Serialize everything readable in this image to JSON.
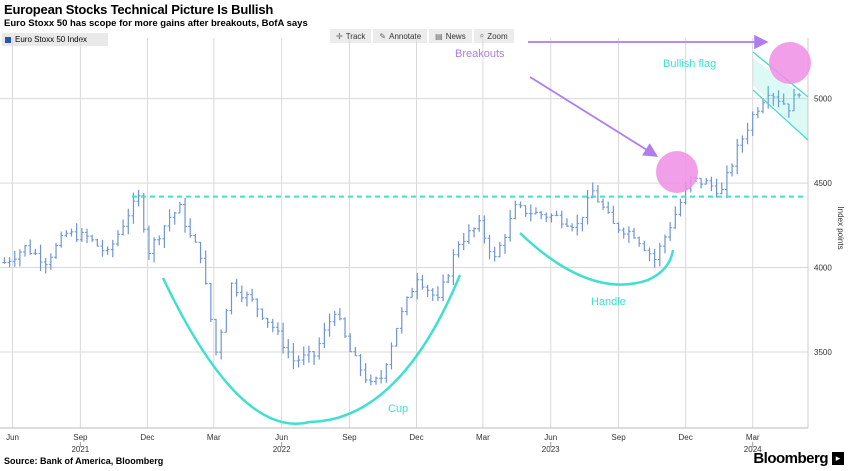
{
  "header": {
    "title": "European Stocks Technical Picture Is Bullish",
    "subtitle": "Euro Stoxx 50 has scope for more gains after breakouts, BofA says"
  },
  "legend": {
    "label": "Euro Stoxx 50 Index",
    "color": "#2457b5"
  },
  "toolbar": {
    "track": "Track",
    "annotate": "Annotate",
    "news": "News",
    "zoom": "Zoom"
  },
  "footer": {
    "source": "Source: Bank of America, Bloomberg",
    "brand": "Bloomberg"
  },
  "colors": {
    "series": "#6d95d6",
    "annotation_teal": "#3fe0cf",
    "annotation_purple": "#b07cf0",
    "highlight_pink": "#f08ee6",
    "grid": "#d9d9d9"
  },
  "chart_data": {
    "type": "bar",
    "ylabel": "Index points",
    "yticks": [
      3500,
      4000,
      4500,
      5000
    ],
    "ylim": [
      3050,
      5300
    ],
    "xlim": [
      "2021-05-15",
      "2024-05-15"
    ],
    "x_month_labels": [
      "Jun",
      "Sep",
      "Dec",
      "Mar",
      "Jun",
      "Sep",
      "Dec",
      "Mar",
      "Jun",
      "Sep",
      "Dec",
      "Mar"
    ],
    "x_year_labels": [
      "2021",
      "2022",
      "2023",
      "2024"
    ],
    "series": [
      {
        "name": "Euro Stoxx 50 Index",
        "points": [
          [
            "2021-05-21",
            4030
          ],
          [
            "2021-06-18",
            4120
          ],
          [
            "2021-07-16",
            4040
          ],
          [
            "2021-08-13",
            4200
          ],
          [
            "2021-09-10",
            4180
          ],
          [
            "2021-10-08",
            4080
          ],
          [
            "2021-11-05",
            4320
          ],
          [
            "2021-11-19",
            4410
          ],
          [
            "2021-12-03",
            4100
          ],
          [
            "2021-12-31",
            4300
          ],
          [
            "2022-01-14",
            4350
          ],
          [
            "2022-01-28",
            4180
          ],
          [
            "2022-02-11",
            4080
          ],
          [
            "2022-03-04",
            3500
          ],
          [
            "2022-03-25",
            3900
          ],
          [
            "2022-04-22",
            3800
          ],
          [
            "2022-05-20",
            3650
          ],
          [
            "2022-06-17",
            3450
          ],
          [
            "2022-07-15",
            3480
          ],
          [
            "2022-08-12",
            3750
          ],
          [
            "2022-09-02",
            3500
          ],
          [
            "2022-09-30",
            3300
          ],
          [
            "2022-10-14",
            3350
          ],
          [
            "2022-11-04",
            3650
          ],
          [
            "2022-12-02",
            3950
          ],
          [
            "2022-12-30",
            3800
          ],
          [
            "2023-01-27",
            4150
          ],
          [
            "2023-02-24",
            4250
          ],
          [
            "2023-03-17",
            4050
          ],
          [
            "2023-04-14",
            4350
          ],
          [
            "2023-05-12",
            4320
          ],
          [
            "2023-06-09",
            4300
          ],
          [
            "2023-07-07",
            4250
          ],
          [
            "2023-07-28",
            4450
          ],
          [
            "2023-08-25",
            4250
          ],
          [
            "2023-09-22",
            4200
          ],
          [
            "2023-10-20",
            4050
          ],
          [
            "2023-11-10",
            4250
          ],
          [
            "2023-12-08",
            4520
          ],
          [
            "2023-12-29",
            4500
          ],
          [
            "2024-01-19",
            4450
          ],
          [
            "2024-02-09",
            4700
          ],
          [
            "2024-03-01",
            4900
          ],
          [
            "2024-03-22",
            5050
          ],
          [
            "2024-04-05",
            5000
          ],
          [
            "2024-04-19",
            4950
          ],
          [
            "2024-05-03",
            5050
          ]
        ]
      }
    ],
    "reference_line": {
      "label": "",
      "value": 4420
    },
    "annotations": [
      "Breakouts",
      "Bullish flag",
      "Cup",
      "Handle"
    ]
  }
}
